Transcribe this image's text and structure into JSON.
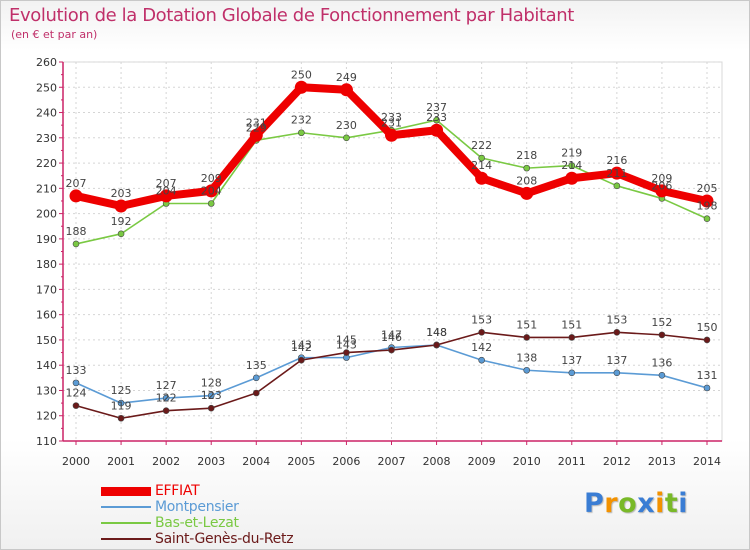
{
  "chart_data": {
    "type": "line",
    "title": "Evolution de la Dotation Globale de Fonctionnement par Habitant",
    "subtitle": "(en € et par an)",
    "x": [
      "2000",
      "2001",
      "2002",
      "2003",
      "2004",
      "2005",
      "2006",
      "2007",
      "2008",
      "2009",
      "2010",
      "2011",
      "2012",
      "2013",
      "2014"
    ],
    "ylim": [
      110,
      260
    ],
    "yticks": [
      110,
      120,
      130,
      140,
      150,
      160,
      170,
      180,
      190,
      200,
      210,
      220,
      230,
      240,
      250,
      260
    ],
    "grid": true,
    "legend_position": "bottom-left",
    "series": [
      {
        "name": "EFFIAT",
        "color": "#ee0000",
        "values": [
          207,
          203,
          207,
          209,
          231,
          250,
          249,
          231,
          233,
          214,
          208,
          214,
          216,
          209,
          205
        ],
        "labels": [
          "207",
          "203",
          "207",
          "209",
          "231",
          "250",
          "249",
          "231",
          "233",
          "214",
          "208",
          "214",
          "216",
          "209",
          "205"
        ]
      },
      {
        "name": "Montpensier",
        "color": "#5b9bd5",
        "values": [
          133,
          125,
          127,
          128,
          135,
          143,
          143,
          147,
          148,
          142,
          138,
          137,
          137,
          136,
          131
        ],
        "labels": [
          "133",
          "125",
          "127",
          "128",
          "135",
          "143",
          "143",
          "147",
          "148",
          "142",
          "138",
          "137",
          "137",
          "136",
          "131"
        ]
      },
      {
        "name": "Bas-et-Lezat",
        "color": "#7ac943",
        "values": [
          188,
          192,
          204,
          204,
          229,
          232,
          230,
          233,
          237,
          222,
          218,
          219,
          211,
          206,
          198
        ],
        "labels": [
          "188",
          "192",
          "204",
          "204",
          "229",
          "232",
          "230",
          "233",
          "237",
          "222",
          "218",
          "219",
          "211",
          "206",
          "198"
        ]
      },
      {
        "name": "Saint-Genès-du-Retz",
        "color": "#6b1a1a",
        "values": [
          124,
          119,
          122,
          123,
          129,
          142,
          145,
          146,
          148,
          153,
          151,
          151,
          153,
          152,
          150
        ],
        "labels": [
          "124",
          "119",
          "122",
          "123",
          "",
          "142",
          "145",
          "146",
          "148",
          "153",
          "151",
          "151",
          "153",
          "152",
          "150"
        ]
      }
    ]
  },
  "brand": {
    "letters": [
      "P",
      "r",
      "o",
      "x",
      "i",
      "t",
      "i"
    ],
    "colors": [
      "#3a7dd4",
      "#f39200",
      "#79b928",
      "#3a7dd4",
      "#f39200",
      "#79b928",
      "#3a7dd4"
    ]
  }
}
